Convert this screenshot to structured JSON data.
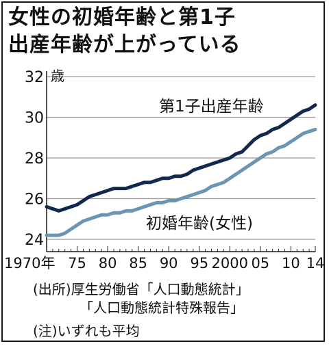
{
  "title_lines": [
    "女性の初婚年齢と第1子",
    "出産年齢が上がっている"
  ],
  "colors": {
    "first_child": "#13284f",
    "first_marriage": "#6a96b4",
    "gridline": "#9a9a9a",
    "text": "#111111"
  },
  "chart_data": {
    "type": "line",
    "title": "女性の初婚年齢と第1子出産年齢が上がっている",
    "ylabel": "歳",
    "ylim": [
      24,
      32
    ],
    "yticks": [
      24,
      26,
      28,
      30,
      32
    ],
    "xlim": [
      1970,
      2014
    ],
    "xticks": [
      {
        "x": 1970,
        "label": "1970年"
      },
      {
        "x": 1975,
        "label": "75"
      },
      {
        "x": 1980,
        "label": "80"
      },
      {
        "x": 1985,
        "label": "85"
      },
      {
        "x": 1990,
        "label": "90"
      },
      {
        "x": 1995,
        "label": "95"
      },
      {
        "x": 2000,
        "label": "2000"
      },
      {
        "x": 2005,
        "label": "05"
      },
      {
        "x": 2010,
        "label": "10"
      },
      {
        "x": 2014,
        "label": "14"
      }
    ],
    "grid": true,
    "series": [
      {
        "name": "第1子出産年齢",
        "color": "#13284f",
        "x": [
          1970,
          1971,
          1972,
          1973,
          1974,
          1975,
          1976,
          1977,
          1978,
          1979,
          1980,
          1981,
          1982,
          1983,
          1984,
          1985,
          1986,
          1987,
          1988,
          1989,
          1990,
          1991,
          1992,
          1993,
          1994,
          1995,
          1996,
          1997,
          1998,
          1999,
          2000,
          2001,
          2002,
          2003,
          2004,
          2005,
          2006,
          2007,
          2008,
          2009,
          2010,
          2011,
          2012,
          2013,
          2014
        ],
        "y": [
          25.6,
          25.5,
          25.4,
          25.5,
          25.6,
          25.7,
          25.9,
          26.1,
          26.2,
          26.3,
          26.4,
          26.5,
          26.5,
          26.5,
          26.6,
          26.7,
          26.8,
          26.8,
          26.9,
          27.0,
          27.0,
          27.1,
          27.1,
          27.2,
          27.4,
          27.5,
          27.6,
          27.7,
          27.8,
          27.9,
          28.0,
          28.2,
          28.3,
          28.6,
          28.9,
          29.1,
          29.2,
          29.4,
          29.5,
          29.7,
          29.9,
          30.1,
          30.3,
          30.4,
          30.6
        ]
      },
      {
        "name": "初婚年齢(女性)",
        "color": "#6a96b4",
        "x": [
          1970,
          1971,
          1972,
          1973,
          1974,
          1975,
          1976,
          1977,
          1978,
          1979,
          1980,
          1981,
          1982,
          1983,
          1984,
          1985,
          1986,
          1987,
          1988,
          1989,
          1990,
          1991,
          1992,
          1993,
          1994,
          1995,
          1996,
          1997,
          1998,
          1999,
          2000,
          2001,
          2002,
          2003,
          2004,
          2005,
          2006,
          2007,
          2008,
          2009,
          2010,
          2011,
          2012,
          2013,
          2014
        ],
        "y": [
          24.2,
          24.2,
          24.2,
          24.3,
          24.5,
          24.7,
          24.9,
          25.0,
          25.1,
          25.2,
          25.2,
          25.3,
          25.3,
          25.4,
          25.4,
          25.5,
          25.6,
          25.7,
          25.8,
          25.8,
          25.9,
          25.9,
          26.0,
          26.1,
          26.2,
          26.3,
          26.4,
          26.6,
          26.7,
          26.8,
          27.0,
          27.2,
          27.4,
          27.6,
          27.8,
          28.0,
          28.2,
          28.3,
          28.5,
          28.6,
          28.8,
          29.0,
          29.2,
          29.3,
          29.4
        ]
      }
    ]
  },
  "series_labels": {
    "first_child": "第1子出産年齢",
    "first_marriage": "初婚年齢(女性)"
  },
  "notes": {
    "source_line1": "(出所)厚生労働省「人口動態統計」",
    "source_line2": "「人口動態統計特殊報告」",
    "remark": "(注)いずれも平均"
  }
}
